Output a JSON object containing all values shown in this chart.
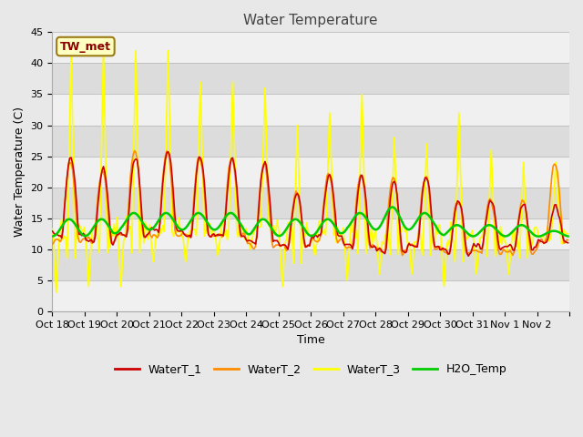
{
  "title": "Water Temperature",
  "xlabel": "Time",
  "ylabel": "Water Temperature (C)",
  "ylim": [
    0,
    45
  ],
  "tick_labels": [
    "Oct 18",
    "Oct 19",
    "Oct 20",
    "Oct 21",
    "Oct 22",
    "Oct 23",
    "Oct 24",
    "Oct 25",
    "Oct 26",
    "Oct 27",
    "Oct 28",
    "Oct 29",
    "Oct 30",
    "Oct 31",
    "Nov 1",
    "Nov 2"
  ],
  "annotation_text": "TW_met",
  "annotation_color": "#8B0000",
  "annotation_bg": "#FFFFC0",
  "annotation_border": "#9B7B14",
  "line_colors": {
    "WaterT_1": "#CC0000",
    "WaterT_2": "#FF8C00",
    "WaterT_3": "#FFFF00",
    "H2O_Temp": "#00CC00"
  },
  "line_widths": {
    "WaterT_1": 1.2,
    "WaterT_2": 1.2,
    "WaterT_3": 1.2,
    "H2O_Temp": 1.8
  },
  "bg_color": "#E8E8E8",
  "band_colors": [
    "#F0F0F0",
    "#DCDCDC"
  ],
  "title_fontsize": 11,
  "axis_label_fontsize": 9,
  "tick_fontsize": 8
}
